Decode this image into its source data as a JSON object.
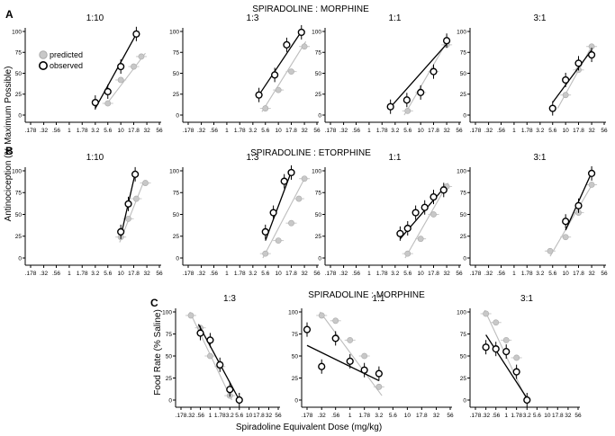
{
  "sections": [
    {
      "letter": "A",
      "title": "SPIRADOLINE : MORPHINE"
    },
    {
      "letter": "B",
      "title": "SPIRADOLINE : ETORPHINE"
    },
    {
      "letter": "C",
      "title": "SPIRADOLINE : MORPHINE"
    }
  ],
  "y_label_top": "Antinociception (% Maximum Possible)",
  "y_label_bottom": "Food Rate (% Saline)",
  "x_label": "Spiradoline Equivalent Dose (mg/kg)",
  "legend": {
    "predicted": "predicted",
    "observed": "observed"
  },
  "colors": {
    "predicted": "#c8c8c8",
    "predicted_line": "#bdbdbd",
    "observed": "#000000"
  },
  "chart_data": [
    {
      "id": "A1",
      "type": "scatter",
      "title": "1:10",
      "x_scale": "log",
      "xlim": [
        0.178,
        56
      ],
      "ylim": [
        0,
        100
      ],
      "xticks": [
        ".178",
        ".32",
        ".56",
        "1",
        "1.78",
        "3.2",
        "5.6",
        "10",
        "17.8",
        "32",
        "56"
      ],
      "yticks": [
        "0",
        "25",
        "50",
        "75",
        "100"
      ],
      "series": [
        {
          "name": "predicted",
          "x": [
            5.6,
            10,
            17.8,
            25
          ],
          "y": [
            14,
            42,
            58,
            70
          ],
          "fit": [
            [
              5.6,
              15
            ],
            [
              30,
              74
            ]
          ]
        },
        {
          "name": "observed",
          "x": [
            3.2,
            5.6,
            10,
            20
          ],
          "y": [
            15,
            28,
            58,
            97
          ],
          "fit": [
            [
              3.2,
              8
            ],
            [
              20,
              97
            ]
          ]
        }
      ]
    },
    {
      "id": "A2",
      "type": "scatter",
      "title": "1:3",
      "x_scale": "log",
      "xlim": [
        0.178,
        56
      ],
      "ylim": [
        0,
        100
      ],
      "xticks": [
        ".178",
        ".32",
        ".56",
        "1",
        "1.78",
        "3.2",
        "5.6",
        "10",
        "17.8",
        "32",
        "56"
      ],
      "yticks": [
        "0",
        "25",
        "50",
        "75",
        "100"
      ],
      "series": [
        {
          "name": "predicted",
          "x": [
            5.6,
            10,
            17.8,
            32
          ],
          "y": [
            8,
            30,
            52,
            82
          ],
          "fit": [
            [
              4.8,
              4
            ],
            [
              34,
              88
            ]
          ]
        },
        {
          "name": "observed",
          "x": [
            4.2,
            8.5,
            14.5,
            28
          ],
          "y": [
            24,
            48,
            84,
            99
          ],
          "fit": [
            [
              4.2,
              24
            ],
            [
              28,
              100
            ]
          ]
        }
      ]
    },
    {
      "id": "A3",
      "type": "scatter",
      "title": "1:1",
      "x_scale": "log",
      "xlim": [
        0.178,
        56
      ],
      "ylim": [
        0,
        100
      ],
      "xticks": [
        ".178",
        ".32",
        ".56",
        "1",
        "1.78",
        "3.2",
        "5.6",
        "10",
        "17.8",
        "32",
        "56"
      ],
      "yticks": [
        "0",
        "25",
        "50",
        "75",
        "100"
      ],
      "series": [
        {
          "name": "predicted",
          "x": [
            5.6,
            10,
            17.8,
            32
          ],
          "y": [
            5,
            27,
            52,
            84
          ],
          "fit": [
            [
              4.8,
              0
            ],
            [
              34,
              90
            ]
          ]
        },
        {
          "name": "observed",
          "x": [
            2.6,
            5.4,
            10,
            17.8,
            32
          ],
          "y": [
            10,
            18,
            27,
            52,
            89
          ],
          "fit": [
            [
              2.4,
              7
            ],
            [
              32,
              85
            ]
          ]
        }
      ]
    },
    {
      "id": "A4",
      "type": "scatter",
      "title": "3:1",
      "x_scale": "log",
      "xlim": [
        0.178,
        56
      ],
      "ylim": [
        0,
        100
      ],
      "xticks": [
        ".178",
        ".32",
        ".56",
        "1",
        "1.78",
        "3.2",
        "5.6",
        "10",
        "17.8",
        "32",
        "56"
      ],
      "yticks": [
        "0",
        "25",
        "50",
        "75",
        "100"
      ],
      "series": [
        {
          "name": "predicted",
          "x": [
            10,
            17.8,
            32
          ],
          "y": [
            24,
            54,
            82
          ],
          "fit": [
            [
              7,
              8
            ],
            [
              34,
              85
            ]
          ]
        },
        {
          "name": "observed",
          "x": [
            5.6,
            10,
            17.8,
            32
          ],
          "y": [
            8,
            42,
            62,
            72
          ],
          "fit": [
            [
              5.6,
              15
            ],
            [
              32,
              78
            ]
          ]
        }
      ]
    },
    {
      "id": "B1",
      "type": "scatter",
      "title": "1:10",
      "x_scale": "log",
      "xlim": [
        0.178,
        56
      ],
      "ylim": [
        0,
        100
      ],
      "xticks": [
        ".178",
        ".32",
        ".56",
        "1",
        "1.78",
        "3.2",
        "5.6",
        "10",
        "17.8",
        "32",
        "56"
      ],
      "yticks": [
        "0",
        "25",
        "50",
        "75",
        "100"
      ],
      "series": [
        {
          "name": "predicted",
          "x": [
            10,
            14,
            20,
            30
          ],
          "y": [
            24,
            45,
            68,
            86
          ],
          "fit": [
            [
              9.5,
              18
            ],
            [
              28,
              88
            ]
          ]
        },
        {
          "name": "observed",
          "x": [
            10,
            14,
            19
          ],
          "y": [
            30,
            62,
            96
          ],
          "fit": [
            [
              10,
              25
            ],
            [
              19,
              97
            ]
          ]
        }
      ]
    },
    {
      "id": "B2",
      "type": "scatter",
      "title": "1:3",
      "x_scale": "log",
      "xlim": [
        0.178,
        56
      ],
      "ylim": [
        0,
        100
      ],
      "xticks": [
        ".178",
        ".32",
        ".56",
        "1",
        "1.78",
        "3.2",
        "5.6",
        "10",
        "17.8",
        "32",
        "56"
      ],
      "yticks": [
        "0",
        "25",
        "50",
        "75",
        "100"
      ],
      "series": [
        {
          "name": "predicted",
          "x": [
            5.6,
            10,
            17.8,
            25,
            32
          ],
          "y": [
            5,
            20,
            40,
            68,
            91
          ],
          "fit": [
            [
              5,
              0
            ],
            [
              34,
              94
            ]
          ]
        },
        {
          "name": "observed",
          "x": [
            5.6,
            8,
            13,
            17.8
          ],
          "y": [
            30,
            52,
            88,
            98
          ],
          "fit": [
            [
              5.6,
              20
            ],
            [
              17.8,
              99
            ]
          ]
        }
      ]
    },
    {
      "id": "B3",
      "type": "scatter",
      "title": "1:1",
      "x_scale": "log",
      "xlim": [
        0.178,
        56
      ],
      "ylim": [
        0,
        100
      ],
      "xticks": [
        ".178",
        ".32",
        ".56",
        "1",
        "1.78",
        "3.2",
        "5.6",
        "10",
        "17.8",
        "32",
        "56"
      ],
      "yticks": [
        "0",
        "25",
        "50",
        "75",
        "100"
      ],
      "series": [
        {
          "name": "predicted",
          "x": [
            5.6,
            10,
            17.8,
            32
          ],
          "y": [
            5,
            22,
            50,
            82
          ],
          "fit": [
            [
              5,
              0
            ],
            [
              34,
              86
            ]
          ]
        },
        {
          "name": "observed",
          "x": [
            4,
            5.6,
            8,
            12,
            17.8,
            28
          ],
          "y": [
            28,
            34,
            52,
            58,
            70,
            78
          ],
          "fit": [
            [
              4,
              22
            ],
            [
              30,
              82
            ]
          ]
        }
      ]
    },
    {
      "id": "B4",
      "type": "scatter",
      "title": "3:1",
      "x_scale": "log",
      "xlim": [
        0.178,
        56
      ],
      "ylim": [
        0,
        100
      ],
      "xticks": [
        ".178",
        ".32",
        ".56",
        "1",
        "1.78",
        "3.2",
        "5.6",
        "10",
        "17.8",
        "32",
        "56"
      ],
      "yticks": [
        "0",
        "25",
        "50",
        "75",
        "100"
      ],
      "series": [
        {
          "name": "predicted",
          "x": [
            5,
            10,
            17.8,
            32
          ],
          "y": [
            8,
            24,
            52,
            84
          ],
          "fit": [
            [
              5,
              2
            ],
            [
              34,
              86
            ]
          ]
        },
        {
          "name": "observed",
          "x": [
            10,
            17.8,
            32
          ],
          "y": [
            42,
            60,
            97
          ],
          "fit": [
            [
              10,
              32
            ],
            [
              32,
              98
            ]
          ]
        }
      ]
    },
    {
      "id": "C1",
      "type": "scatter",
      "title": "1:3",
      "x_scale": "log",
      "xlim": [
        0.178,
        56
      ],
      "ylim": [
        0,
        100
      ],
      "xticks": [
        ".178",
        ".32",
        ".56",
        "1",
        "1.78",
        "3.2",
        "5.6",
        "10",
        "17.8",
        "32",
        "56"
      ],
      "yticks": [
        "0",
        "25",
        "50",
        "75",
        "100"
      ],
      "series": [
        {
          "name": "predicted",
          "x": [
            0.32,
            0.56,
            1,
            1.78,
            3.2
          ],
          "y": [
            96,
            82,
            50,
            38,
            5
          ],
          "fit": [
            [
              0.3,
              100
            ],
            [
              3.6,
              0
            ]
          ]
        },
        {
          "name": "observed",
          "x": [
            0.56,
            1,
            1.78,
            3.2,
            5.6
          ],
          "y": [
            76,
            68,
            40,
            12,
            0
          ],
          "fit": [
            [
              0.5,
              86
            ],
            [
              5.6,
              0
            ]
          ]
        }
      ]
    },
    {
      "id": "C2",
      "type": "scatter",
      "title": "1:1",
      "x_scale": "log",
      "xlim": [
        0.178,
        56
      ],
      "ylim": [
        0,
        100
      ],
      "xticks": [
        ".178",
        ".32",
        ".56",
        "1",
        "1.78",
        "3.2",
        "5.6",
        "10",
        "17.8",
        "32",
        "56"
      ],
      "yticks": [
        "0",
        "25",
        "50",
        "75",
        "100"
      ],
      "series": [
        {
          "name": "predicted",
          "x": [
            0.32,
            0.56,
            1,
            1.78,
            3.2
          ],
          "y": [
            96,
            90,
            68,
            50,
            15
          ],
          "fit": [
            [
              0.3,
              100
            ],
            [
              3.6,
              5
            ]
          ]
        },
        {
          "name": "observed",
          "x": [
            0.178,
            0.32,
            0.56,
            1,
            1.78,
            3.2
          ],
          "y": [
            80,
            38,
            70,
            44,
            34,
            30
          ],
          "fit": [
            [
              0.178,
              62
            ],
            [
              3.2,
              22
            ]
          ]
        }
      ]
    },
    {
      "id": "C3",
      "type": "scatter",
      "title": "3:1",
      "x_scale": "log",
      "xlim": [
        0.178,
        56
      ],
      "ylim": [
        0,
        100
      ],
      "xticks": [
        ".178",
        ".32",
        ".56",
        "1",
        "1.78",
        "3.2",
        "5.6",
        "10",
        "17.8",
        "32",
        "56"
      ],
      "yticks": [
        "0",
        "25",
        "50",
        "75",
        "100"
      ],
      "series": [
        {
          "name": "predicted",
          "x": [
            0.32,
            0.56,
            1,
            1.78
          ],
          "y": [
            98,
            88,
            68,
            48
          ],
          "fit": [
            [
              0.3,
              102
            ],
            [
              3,
              2
            ]
          ]
        },
        {
          "name": "observed",
          "x": [
            0.32,
            0.56,
            1,
            1.78,
            3.2
          ],
          "y": [
            60,
            58,
            55,
            32,
            0
          ],
          "fit": [
            [
              0.32,
              74
            ],
            [
              3.2,
              2
            ]
          ]
        }
      ]
    }
  ]
}
